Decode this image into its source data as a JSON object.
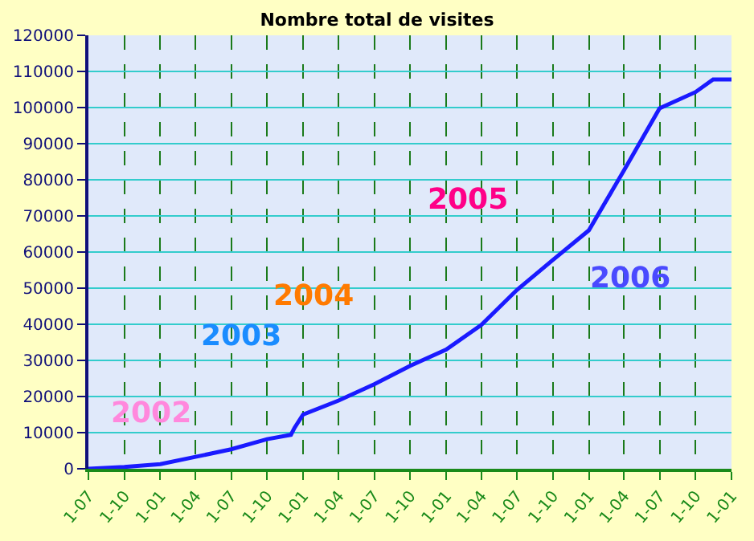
{
  "chart_data": {
    "type": "line",
    "title": "Nombre total de visites",
    "x": [
      "2002-07-01",
      "2002-10-01",
      "2003-01-01",
      "2003-04-01",
      "2003-07-01",
      "2003-10-01",
      "2003-12-01",
      "2003-12-10",
      "2004-01-01",
      "2004-04-01",
      "2004-07-01",
      "2004-10-01",
      "2005-01-01",
      "2005-04-01",
      "2005-07-01",
      "2005-10-01",
      "2006-01-01",
      "2006-04-01",
      "2006-07-01",
      "2006-10-01",
      "2006-11-15",
      "2007-01-01"
    ],
    "series": [
      {
        "color": "#1a1aff",
        "values": [
          0,
          500,
          1300,
          3300,
          5400,
          8200,
          9400,
          11300,
          15000,
          18900,
          23400,
          28500,
          33000,
          39800,
          49500,
          57800,
          66000,
          82600,
          99800,
          104300,
          107800,
          107800
        ]
      }
    ],
    "xlim": [
      "2002-07-01",
      "2007-01-01"
    ],
    "xticks": [
      {
        "value": "2002-07-01",
        "label": "1-07"
      },
      {
        "value": "2002-10-01",
        "label": "1-10"
      },
      {
        "value": "2003-01-01",
        "label": "1-01"
      },
      {
        "value": "2003-04-01",
        "label": "1-04"
      },
      {
        "value": "2003-07-01",
        "label": "1-07"
      },
      {
        "value": "2003-10-01",
        "label": "1-10"
      },
      {
        "value": "2004-01-01",
        "label": "1-01"
      },
      {
        "value": "2004-04-01",
        "label": "1-04"
      },
      {
        "value": "2004-07-01",
        "label": "1-07"
      },
      {
        "value": "2004-10-01",
        "label": "1-10"
      },
      {
        "value": "2005-01-01",
        "label": "1-01"
      },
      {
        "value": "2005-04-01",
        "label": "1-04"
      },
      {
        "value": "2005-07-01",
        "label": "1-07"
      },
      {
        "value": "2005-10-01",
        "label": "1-10"
      },
      {
        "value": "2006-01-01",
        "label": "1-01"
      },
      {
        "value": "2006-04-01",
        "label": "1-04"
      },
      {
        "value": "2006-07-01",
        "label": "1-07"
      },
      {
        "value": "2006-10-01",
        "label": "1-10"
      },
      {
        "value": "2007-01-01",
        "label": "1-01"
      }
    ],
    "ylim": [
      0,
      120000
    ],
    "yticks": [
      0,
      10000,
      20000,
      30000,
      40000,
      50000,
      60000,
      70000,
      80000,
      90000,
      100000,
      110000,
      120000
    ],
    "grid": true,
    "legend": false,
    "marker": "none",
    "line_style": "solid",
    "annotations": [
      "2002",
      "2003",
      "2004",
      "2005",
      "2006"
    ]
  }
}
